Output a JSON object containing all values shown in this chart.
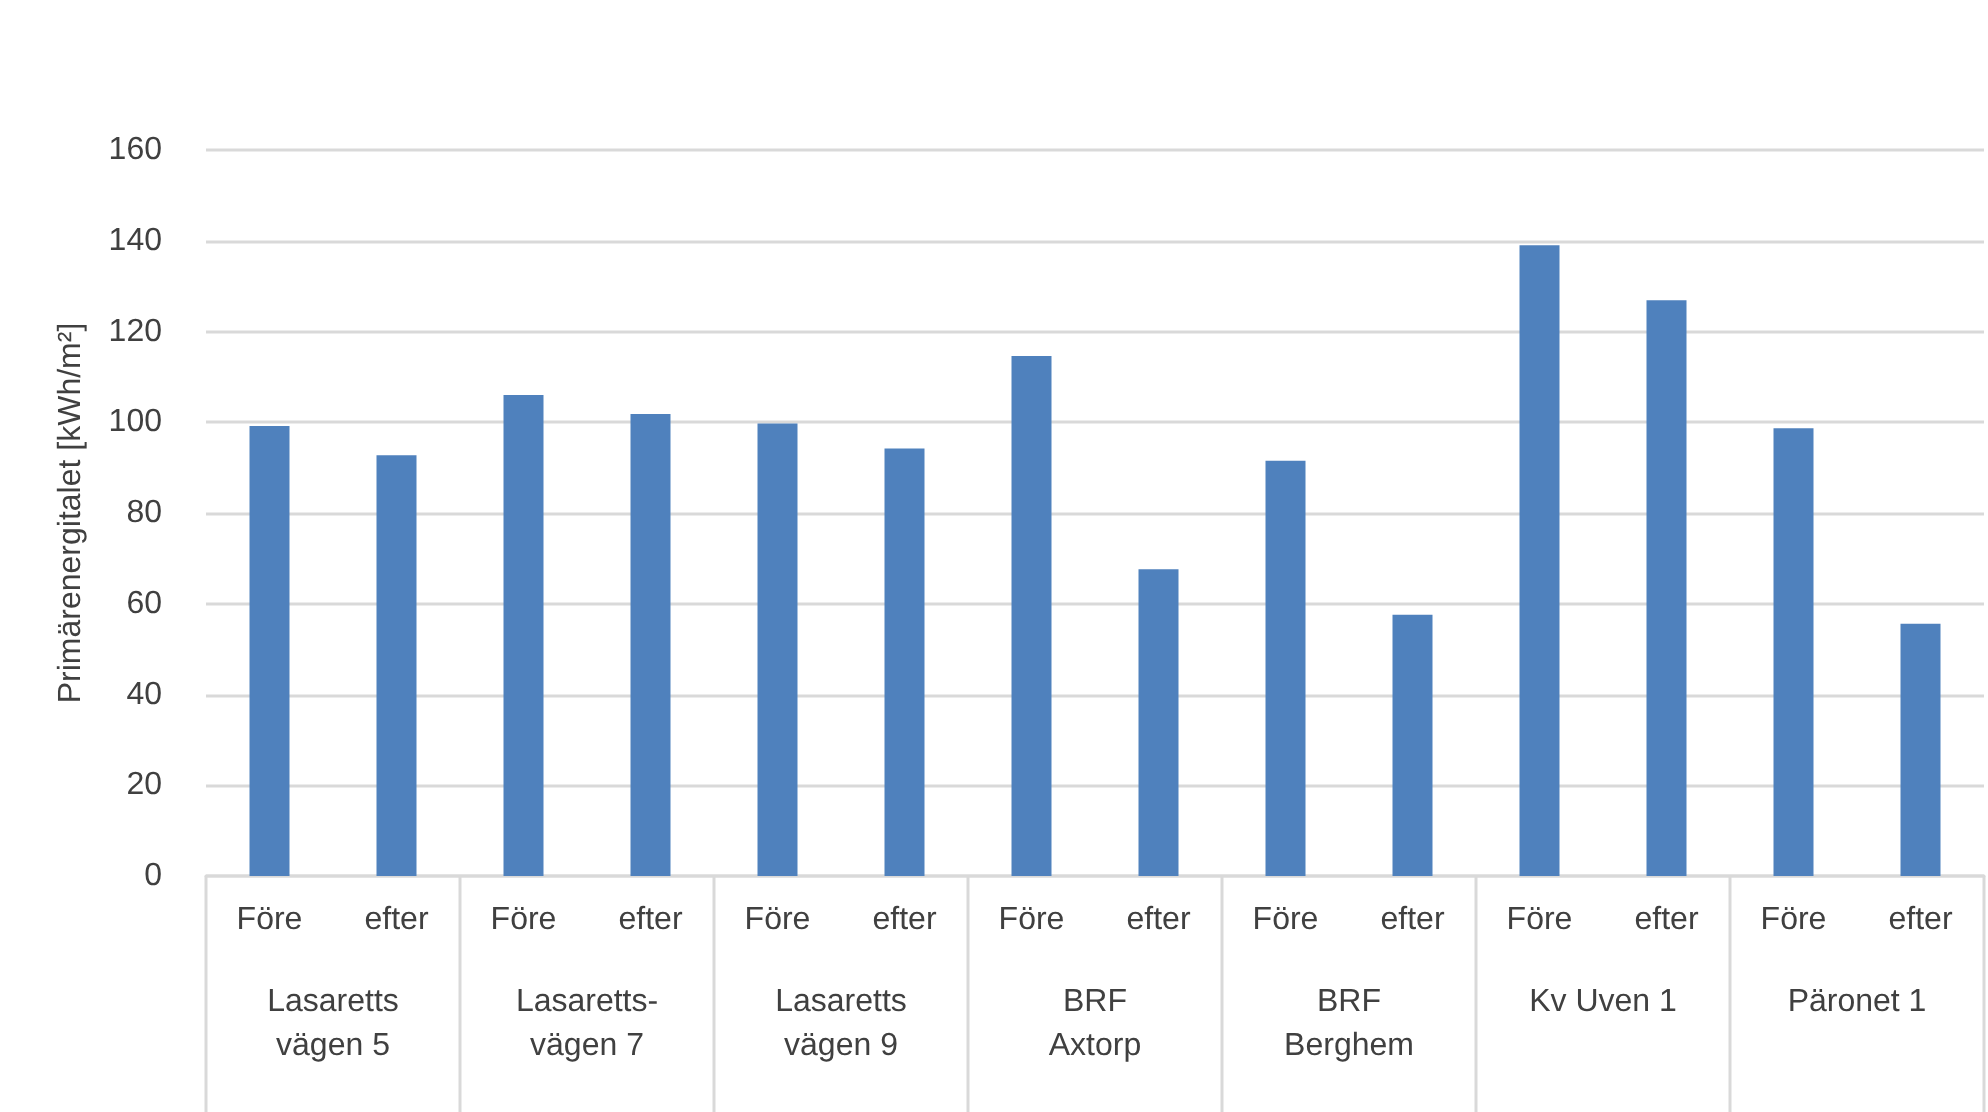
{
  "chart_data": {
    "type": "bar",
    "ylabel": "Primärenergitalet [kWh/m²]",
    "categories": [
      "Före",
      "efter",
      "Före",
      "efter",
      "Före",
      "efter",
      "Före",
      "efter",
      "Före",
      "efter",
      "Före",
      "efter",
      "Före",
      "efter"
    ],
    "values": [
      99.2,
      92.7,
      106,
      101.8,
      99.7,
      94.2,
      114.6,
      67.6,
      91.5,
      57.6,
      139,
      126.9,
      98.7,
      55.6
    ],
    "color": "#4f81bd",
    "annotations": [
      "Lasaretts\nvägen 5",
      "Lasaretts-\nvägen 7",
      "Lasaretts\nvägen 9",
      "BRF\nAxtorp",
      "BRF\nBerghem",
      "Kv Uven 1",
      "Päronet 1"
    ],
    "ylim": [
      0,
      160
    ],
    "yticks": [
      0,
      20,
      40,
      60,
      80,
      100,
      120,
      140,
      160
    ],
    "grid": "y"
  }
}
